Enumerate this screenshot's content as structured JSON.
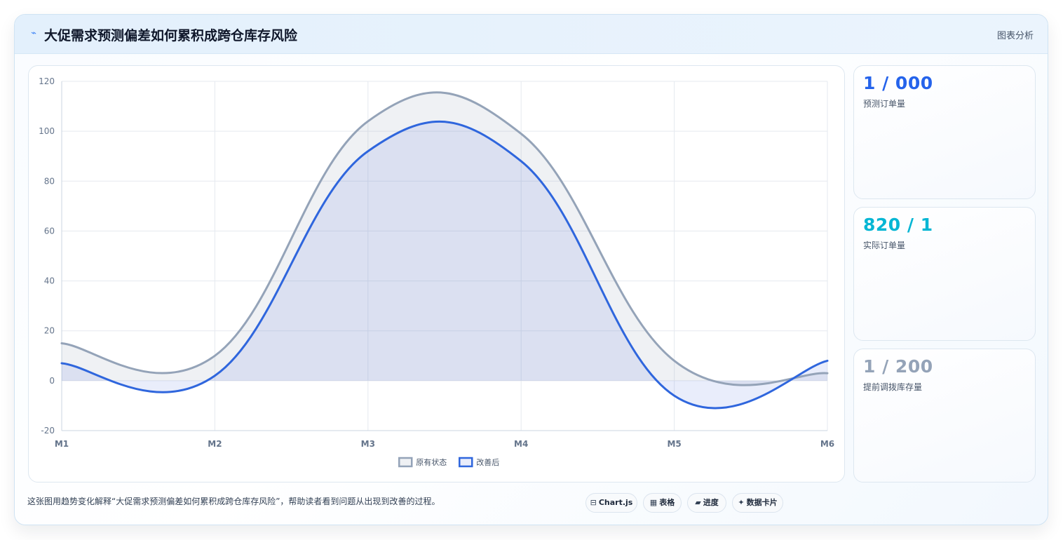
{
  "header": {
    "icon": "lightning-icon",
    "title": "大促需求预测偏差如何累积成跨仓库存风险",
    "right_label": "图表分析"
  },
  "stats": [
    {
      "value": "1 / 000",
      "label": "预测订单量",
      "color": "#2563eb"
    },
    {
      "value": "820 / 1",
      "label": "实际订单量",
      "color": "#06b6d4"
    },
    {
      "value": "1 / 200",
      "label": "提前调拨库存量",
      "color": "#94a3b8"
    }
  ],
  "footer": {
    "text": "这张图用趋势变化解释“大促需求预测偏差如何累积成跨仓库存风险”，帮助读者看到问题从出现到改善的过程。"
  },
  "tags": [
    {
      "icon": "chart-icon",
      "glyph": "⊟",
      "label": "Chart.js"
    },
    {
      "icon": "table-icon",
      "glyph": "▦",
      "label": "表格"
    },
    {
      "icon": "progress-icon",
      "glyph": "▰",
      "label": "进度"
    },
    {
      "icon": "sparkle-icon",
      "glyph": "✦",
      "label": "数据卡片"
    }
  ],
  "chart_data": {
    "type": "area",
    "categories": [
      "M1",
      "M2",
      "M3",
      "M4",
      "M5",
      "M6"
    ],
    "ylim": [
      -20,
      120
    ],
    "yticks": [
      "120",
      "100",
      "80",
      "60",
      "40",
      "20",
      "0",
      "-20"
    ],
    "grid": true,
    "legend_position": "bottom",
    "series": [
      {
        "name": "原有状态",
        "values": [
          15,
          10,
          104,
          99,
          8,
          3
        ],
        "color": "#94a3b8",
        "fill": "rgba(148,163,184,0.15)"
      },
      {
        "name": "改善后",
        "values": [
          7,
          2,
          92,
          88,
          -6,
          8
        ],
        "color": "#2f66dd",
        "fill": "rgba(70,110,220,0.12)"
      }
    ]
  }
}
